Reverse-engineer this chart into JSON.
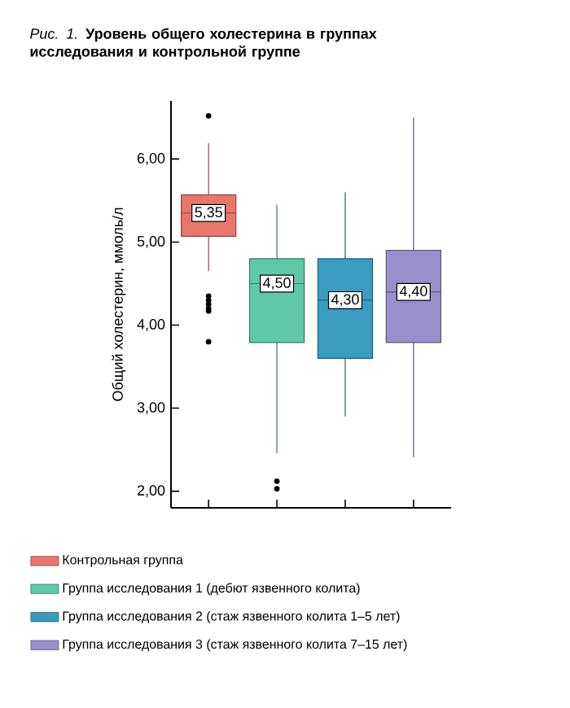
{
  "chart_data": {
    "type": "box",
    "title": "*Рис. 1.* **Уровень общего холестерина в группах исследования и контрольной группе**",
    "ylabel": "Общий холестерин, ммоль/л",
    "categories": [
      null,
      null,
      null,
      null
    ],
    "ylim": [
      1.8,
      6.7
    ],
    "yticks": [
      {
        "value": 2,
        "label": "2,00"
      },
      {
        "value": 3,
        "label": "3,00"
      },
      {
        "value": 4,
        "label": "4,00"
      },
      {
        "value": 5,
        "label": "5,00"
      },
      {
        "value": 6,
        "label": "6,00"
      }
    ],
    "tick_labels": "y",
    "legend": "bottom",
    "series": [
      {
        "name": "Контрольная группа",
        "color": "#e8766a",
        "boxes": [
          {
            "low": 4.65,
            "q1": 5.07,
            "median": 5.35,
            "q3": 5.57,
            "high": 6.19,
            "outliers": [
              6.52,
              4.35,
              4.3,
              4.25,
              4.2,
              4.17,
              3.8
            ]
          },
          null,
          null,
          null
        ],
        "value_labels": [
          "5,35",
          null,
          null,
          null
        ]
      },
      {
        "name": "Группа исследования 1 (дебют язвенного колита)",
        "color": "#5ec8a8",
        "boxes": [
          null,
          {
            "low": 2.46,
            "q1": 3.79,
            "median": 4.5,
            "q3": 4.8,
            "high": 5.45,
            "outliers": [
              2.12,
              2.03
            ]
          },
          null,
          null
        ],
        "value_labels": [
          null,
          "4,50",
          null,
          null
        ]
      },
      {
        "name": "Группа исследования 2 (стаж язвенного колита 1–5 лет)",
        "color": "#3a9cc0",
        "boxes": [
          null,
          null,
          {
            "low": 2.9,
            "q1": 3.6,
            "median": 4.3,
            "q3": 4.8,
            "high": 5.6
          },
          null
        ],
        "value_labels": [
          null,
          null,
          "4,30",
          null
        ]
      },
      {
        "name": "Группа исследования 3 (стаж язвенного колита 7–15 лет)",
        "color": "#9b8fcb",
        "boxes": [
          null,
          null,
          null,
          {
            "low": 2.41,
            "q1": 3.79,
            "median": 4.4,
            "q3": 4.9,
            "high": 6.5
          }
        ],
        "value_labels": [
          null,
          null,
          null,
          "4,40"
        ]
      }
    ]
  }
}
